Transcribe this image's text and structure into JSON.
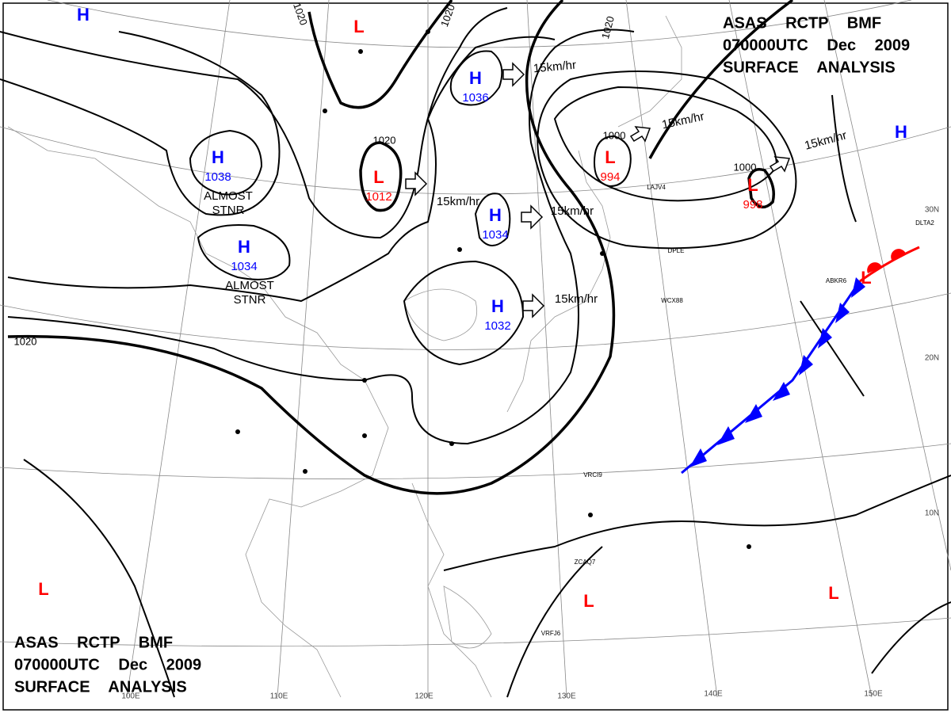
{
  "header": {
    "lines": [
      "ASAS RCTP BMF",
      "070000UTC Dec 2009",
      "SURFACE ANALYSIS"
    ]
  },
  "footer": {
    "lines": [
      "ASAS RCTP BMF",
      "070000UTC Dec 2009",
      "SURFACE ANALYSIS"
    ]
  },
  "colors": {
    "H": "#0000ff",
    "L": "#ff0000"
  },
  "centers": [
    {
      "symbol": "H"
    },
    {
      "symbol": "L"
    },
    {
      "symbol": "H",
      "pressure": 1036
    },
    {
      "symbol": "H",
      "pressure": 1038
    },
    {
      "symbol": "L",
      "pressure": 1012
    },
    {
      "symbol": "H",
      "pressure": 1034
    },
    {
      "symbol": "H",
      "pressure": 1034
    },
    {
      "symbol": "H",
      "pressure": 1032
    },
    {
      "symbol": "L",
      "pressure": 994
    },
    {
      "symbol": "L",
      "pressure": 998
    },
    {
      "symbol": "H"
    },
    {
      "symbol": "L"
    },
    {
      "symbol": "L"
    },
    {
      "symbol": "L"
    },
    {
      "symbol": "L"
    }
  ],
  "isobar_labels": [
    1020,
    1020,
    1020,
    1020,
    1020,
    1000,
    1000
  ],
  "wind_labels": [
    "15km/hr",
    "15km/hr",
    "15km/hr",
    "15km/hr",
    "15km/hr",
    "15km/hr"
  ],
  "notes": [
    "ALMOST STNR",
    "ALMOST STNR"
  ],
  "grid_labels": [
    "100E",
    "110E",
    "120E",
    "130E",
    "140E",
    "150E",
    "30N",
    "20N",
    "10N"
  ],
  "stations": [
    "LAJV4",
    "DPLE",
    "WCX88",
    "VRCI9",
    "ZCAQ7",
    "VRFJ6",
    "DLTA2",
    "ABKR6"
  ]
}
